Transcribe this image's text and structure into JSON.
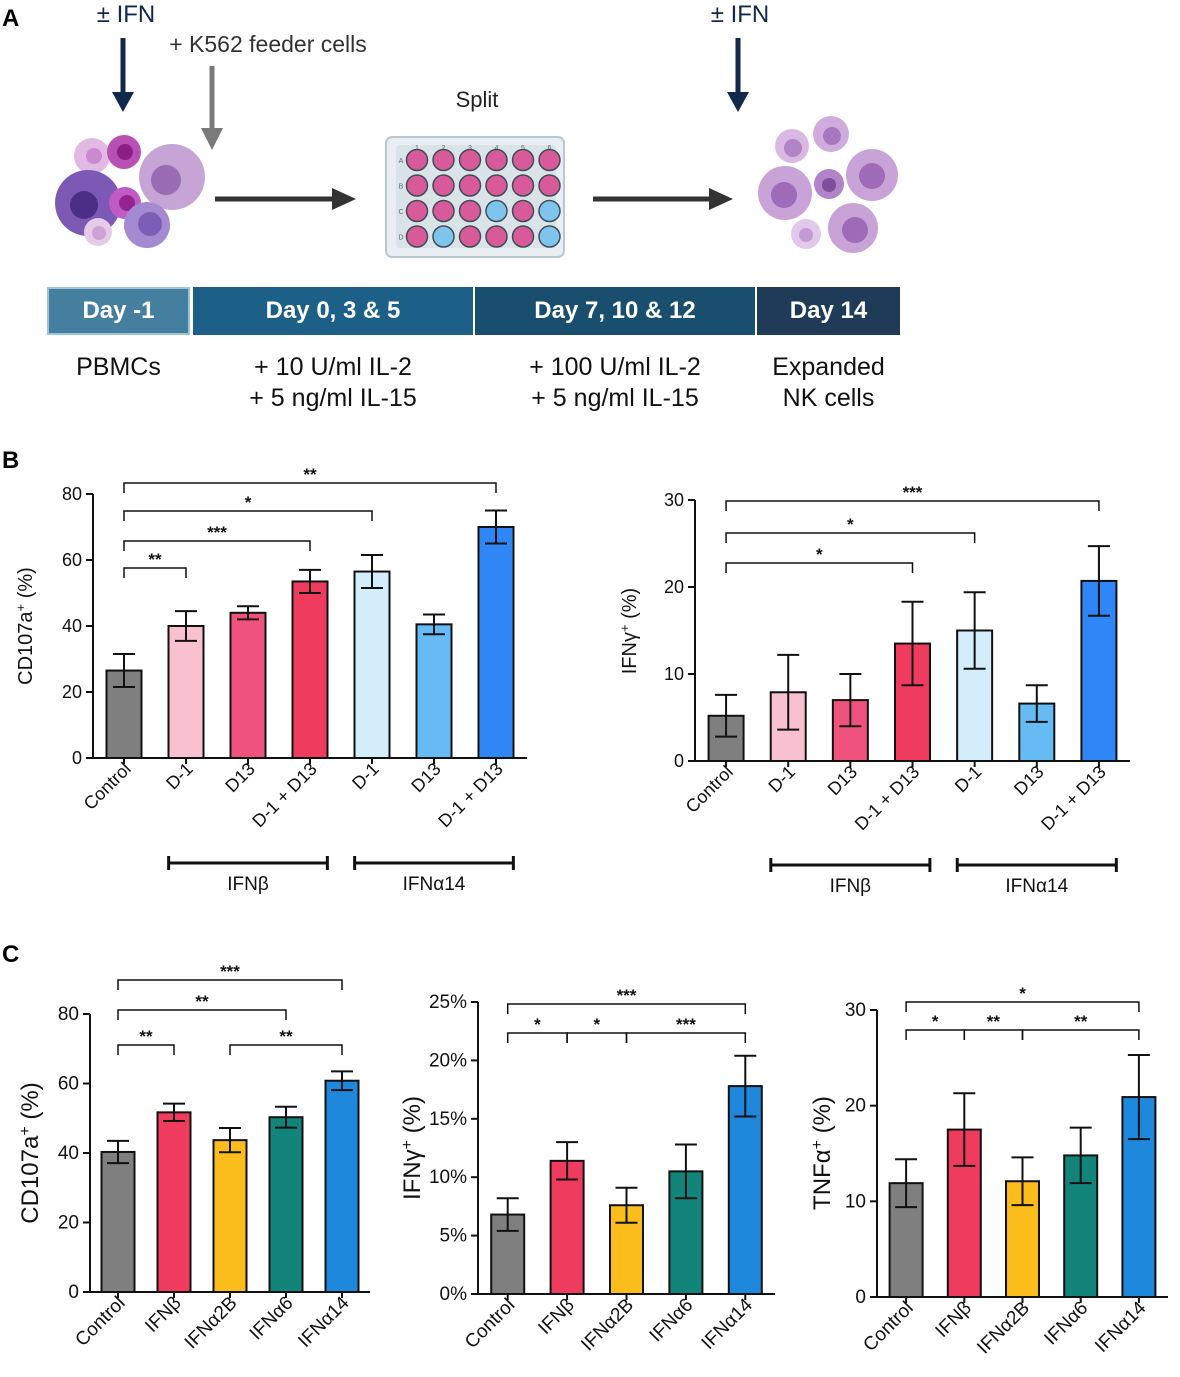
{
  "panels": {
    "a": "A",
    "b": "B",
    "c": "C"
  },
  "schematic": {
    "ifn_left": "± IFN",
    "ifn_right": "± IFN",
    "feeder": "+ K562 feeder cells",
    "split": "Split",
    "plate_cols": [
      "1",
      "2",
      "3",
      "4",
      "5",
      "6"
    ],
    "plate_rows": [
      "A",
      "B",
      "C",
      "D"
    ],
    "colors": {
      "dark_arrow": "#13294b",
      "grey_arrow": "#7a7a7a",
      "well_pink": "#d85a98",
      "well_blue": "#7fc4ec",
      "cell_purple": "#a77dc0",
      "cell_light": "#d8b5df"
    }
  },
  "timeline": [
    {
      "day": "Day -1",
      "line1": "PBMCs",
      "line2": "",
      "color": "#457f9f"
    },
    {
      "day": "Day 0, 3 & 5",
      "line1": "+ 10 U/ml IL-2",
      "line2": "+ 5 ng/ml IL-15",
      "color": "#1c5f87"
    },
    {
      "day": "Day 7, 10 & 12",
      "line1": "+ 100 U/ml IL-2",
      "line2": "+ 5 ng/ml IL-15",
      "color": "#1a4e6e"
    },
    {
      "day": "Day 14",
      "line1": "Expanded",
      "line2": "NK cells",
      "color": "#1f3b57"
    }
  ],
  "chart_data": [
    {
      "id": "B-left",
      "type": "bar",
      "ylabel": "CD107a",
      "ylabel_sup": "+",
      "ylabel_unit": " (%)",
      "ylim": [
        0,
        80
      ],
      "yticks": [
        0,
        20,
        40,
        60,
        80
      ],
      "tick_suffix": "",
      "categories": [
        "Control",
        "D-1",
        "D13",
        "D-1 + D13",
        "D-1",
        "D13",
        "D-1 + D13"
      ],
      "values": [
        26.5,
        40,
        44,
        53.5,
        56.5,
        40.5,
        70
      ],
      "errors": [
        5,
        4.5,
        2,
        3.5,
        5,
        3,
        5
      ],
      "colors": [
        "#7f7f7f",
        "#f9c0d0",
        "#f0527e",
        "#ef3b5e",
        "#d3edfb",
        "#66bbf4",
        "#2f86f6"
      ],
      "significance": [
        {
          "from": 0,
          "to": 1,
          "label": "**"
        },
        {
          "from": 0,
          "to": 3,
          "label": "***"
        },
        {
          "from": 0,
          "to": 4,
          "label": "*"
        },
        {
          "from": 0,
          "to": 6,
          "label": "**"
        }
      ],
      "groups": [
        {
          "label": "IFNβ",
          "from": 1,
          "to": 3
        },
        {
          "label": "IFNα14",
          "from": 4,
          "to": 6
        }
      ]
    },
    {
      "id": "B-right",
      "type": "bar",
      "ylabel": "IFNγ",
      "ylabel_sup": "+",
      "ylabel_unit": " (%)",
      "ylim": [
        0,
        30
      ],
      "yticks": [
        0,
        10,
        20,
        30
      ],
      "tick_suffix": "",
      "categories": [
        "Control",
        "D-1",
        "D13",
        "D-1 + D13",
        "D-1",
        "D13",
        "D-1 + D13"
      ],
      "values": [
        5.2,
        7.9,
        7,
        13.5,
        15,
        6.6,
        20.7
      ],
      "errors": [
        2.4,
        4.3,
        3,
        4.8,
        4.4,
        2.1,
        4
      ],
      "colors": [
        "#7f7f7f",
        "#f9c0d0",
        "#f0527e",
        "#ef3b5e",
        "#d3edfb",
        "#66bbf4",
        "#2f86f6"
      ],
      "significance": [
        {
          "from": 0,
          "to": 3,
          "label": "*"
        },
        {
          "from": 0,
          "to": 4,
          "label": "*"
        },
        {
          "from": 0,
          "to": 6,
          "label": "***"
        }
      ],
      "groups": [
        {
          "label": "IFNβ",
          "from": 1,
          "to": 3
        },
        {
          "label": "IFNα14",
          "from": 4,
          "to": 6
        }
      ]
    },
    {
      "id": "C-1",
      "type": "bar",
      "ylabel": "CD107a",
      "ylabel_sup": "+",
      "ylabel_unit": " (%)",
      "ylim": [
        0,
        80
      ],
      "yticks": [
        0,
        20,
        40,
        60,
        80
      ],
      "tick_suffix": "",
      "categories": [
        "Control",
        "IFNβ",
        "IFNα2B",
        "IFNα6",
        "IFNα14"
      ],
      "values": [
        40.3,
        51.7,
        43.7,
        50.3,
        60.8
      ],
      "errors": [
        3.2,
        2.5,
        3.5,
        3,
        2.7
      ],
      "colors": [
        "#7f7f7f",
        "#ef3b5e",
        "#fbbd1b",
        "#12847a",
        "#1e88dd"
      ],
      "significance": [
        {
          "from": 0,
          "to": 1,
          "label": "**"
        },
        {
          "from": 2,
          "to": 4,
          "label": "**"
        },
        {
          "from": 0,
          "to": 3,
          "label": "**"
        },
        {
          "from": 0,
          "to": 4,
          "label": "***"
        }
      ],
      "groups": []
    },
    {
      "id": "C-2",
      "type": "bar",
      "ylabel": "IFNγ",
      "ylabel_sup": "+",
      "ylabel_unit": " (%)",
      "ylim": [
        0,
        25
      ],
      "yticks": [
        0,
        5,
        10,
        15,
        20,
        25
      ],
      "tick_suffix": "%",
      "categories": [
        "Control",
        "IFNβ",
        "IFNα2B",
        "IFNα6",
        "IFNα14"
      ],
      "values": [
        6.8,
        11.4,
        7.6,
        10.5,
        17.8
      ],
      "errors": [
        1.4,
        1.6,
        1.5,
        2.3,
        2.6
      ],
      "colors": [
        "#7f7f7f",
        "#ef3b5e",
        "#fbbd1b",
        "#12847a",
        "#1e88dd"
      ],
      "significance": [
        {
          "from": 0,
          "to": 1,
          "label": "*"
        },
        {
          "from": 1,
          "to": 2,
          "label": "*"
        },
        {
          "from": 2,
          "to": 4,
          "label": "***"
        },
        {
          "from": 0,
          "to": 4,
          "label": "***"
        }
      ],
      "groups": []
    },
    {
      "id": "C-3",
      "type": "bar",
      "ylabel": "TNFα",
      "ylabel_sup": "+",
      "ylabel_unit": " (%)",
      "ylim": [
        0,
        30
      ],
      "yticks": [
        0,
        10,
        20,
        30
      ],
      "tick_suffix": "",
      "categories": [
        "Control",
        "IFNβ",
        "IFNα2B",
        "IFNα6",
        "IFNα14"
      ],
      "values": [
        11.9,
        17.5,
        12.1,
        14.8,
        20.9
      ],
      "errors": [
        2.5,
        3.8,
        2.5,
        2.9,
        4.4
      ],
      "colors": [
        "#7f7f7f",
        "#ef3b5e",
        "#fbbd1b",
        "#12847a",
        "#1e88dd"
      ],
      "significance": [
        {
          "from": 0,
          "to": 1,
          "label": "*"
        },
        {
          "from": 1,
          "to": 2,
          "label": "**"
        },
        {
          "from": 2,
          "to": 4,
          "label": "**"
        },
        {
          "from": 0,
          "to": 4,
          "label": "*"
        }
      ],
      "groups": []
    }
  ]
}
